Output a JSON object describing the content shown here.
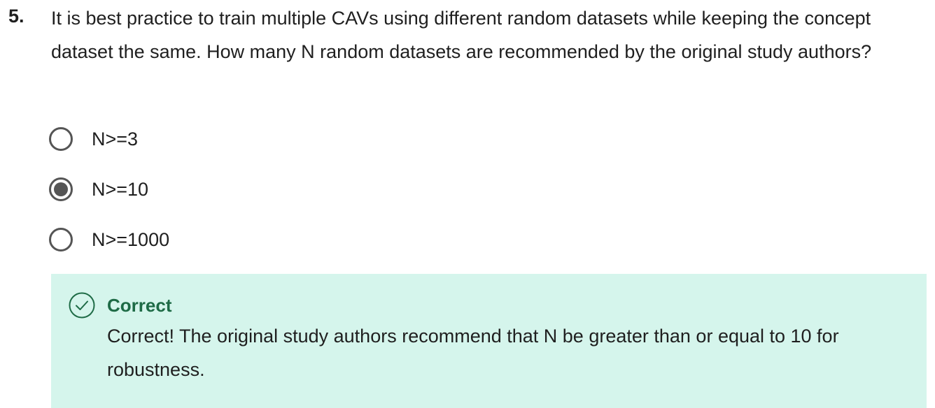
{
  "question": {
    "number": "5.",
    "text": "It is best practice to train multiple CAVs using different random datasets while keeping the concept dataset the same. How many N random datasets are recommended by the original study authors?"
  },
  "options": [
    {
      "label": "N>=3",
      "selected": false
    },
    {
      "label": "N>=10",
      "selected": true
    },
    {
      "label": "N>=1000",
      "selected": false
    }
  ],
  "feedback": {
    "icon": "check-circle-icon",
    "title": "Correct",
    "text": "Correct! The original study authors recommend that N be greater than or equal to 10 for robustness.",
    "colors": {
      "background": "#d5f5ec",
      "accent": "#1e6b46"
    }
  }
}
